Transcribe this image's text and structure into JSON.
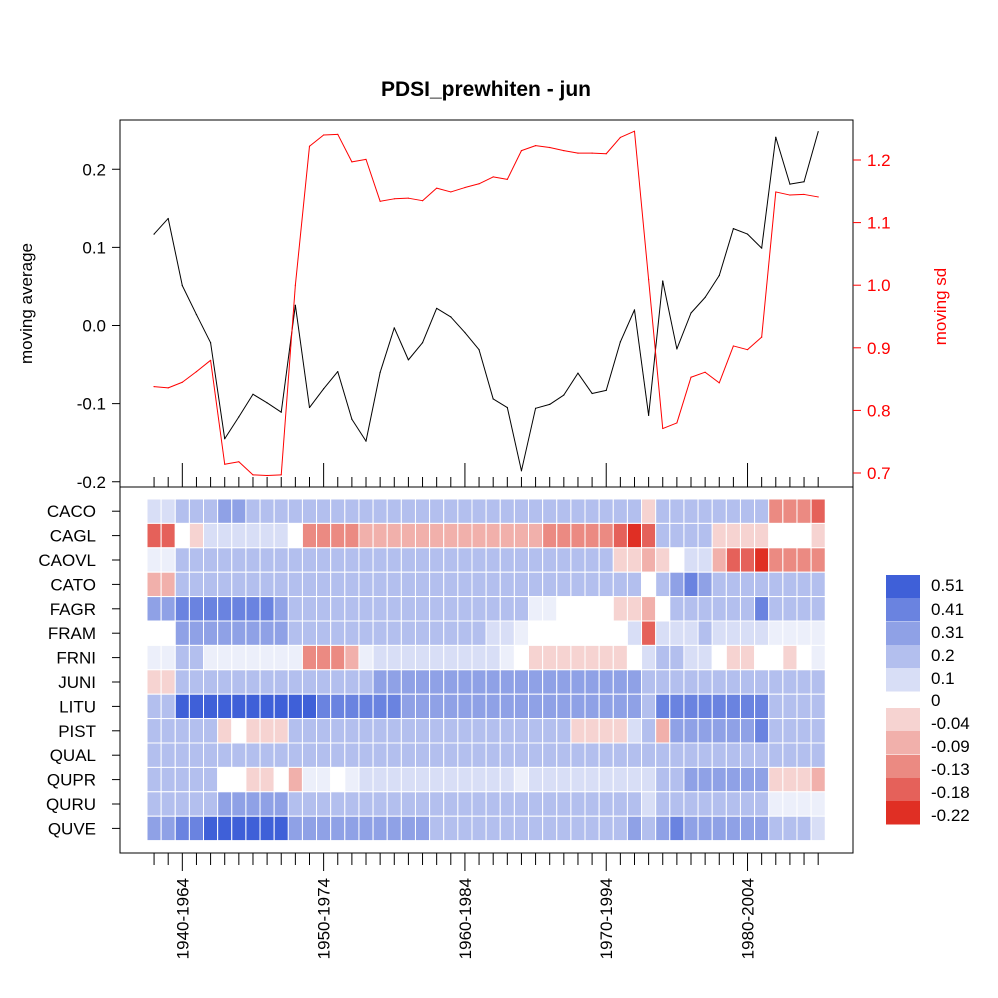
{
  "chart_data": {
    "title": "PDSI_prewhiten - jun",
    "type": "line",
    "top": {
      "left_axis_label": "moving average",
      "right_axis_label": "moving sd",
      "left_ylim": [
        -0.2,
        0.25
      ],
      "right_ylim": [
        0.69,
        1.25
      ],
      "left_ticks": [
        "0.2",
        "0.1",
        "0.0",
        "-0.1",
        "-0.2"
      ],
      "left_tick_values": [
        0.2,
        0.1,
        0.0,
        -0.1,
        -0.2
      ],
      "right_ticks": [
        "1.2",
        "1.1",
        "1.0",
        "0.9",
        "0.8",
        "0.7"
      ],
      "right_tick_values": [
        1.2,
        1.1,
        1.0,
        0.9,
        0.8,
        0.7
      ],
      "series": [
        {
          "color": "#000000",
          "axis": "left",
          "values": [
            0.117,
            0.137,
            0.051,
            0.014,
            -0.022,
            -0.145,
            -0.117,
            -0.088,
            -0.099,
            -0.111,
            0.026,
            -0.105,
            -0.081,
            -0.059,
            -0.12,
            -0.148,
            -0.06,
            -0.003,
            -0.044,
            -0.022,
            0.022,
            0.011,
            -0.009,
            -0.031,
            -0.094,
            -0.105,
            -0.186,
            -0.106,
            -0.101,
            -0.089,
            -0.061,
            -0.087,
            -0.083,
            -0.021,
            0.02,
            -0.115,
            0.057,
            -0.03,
            0.016,
            0.036,
            0.064,
            0.124,
            0.117,
            0.099,
            0.241,
            0.181,
            0.184,
            0.248
          ]
        },
        {
          "color": "#ff0000",
          "axis": "right",
          "values": [
            0.838,
            0.836,
            0.845,
            0.862,
            0.88,
            0.714,
            0.718,
            0.697,
            0.696,
            0.697,
            1.0,
            1.222,
            1.24,
            1.241,
            1.197,
            1.201,
            1.134,
            1.138,
            1.139,
            1.135,
            1.155,
            1.149,
            1.156,
            1.162,
            1.173,
            1.169,
            1.215,
            1.223,
            1.22,
            1.215,
            1.211,
            1.211,
            1.21,
            1.236,
            1.246,
            1.009,
            0.771,
            0.78,
            0.853,
            0.861,
            0.844,
            0.903,
            0.897,
            0.917,
            1.149,
            1.144,
            1.145,
            1.141
          ]
        }
      ]
    },
    "heatmap": {
      "rows": [
        "CACO",
        "CAGL",
        "CAOVL",
        "CATO",
        "FAGR",
        "FRAM",
        "FRNI",
        "JUNI",
        "LITU",
        "PIST",
        "QUAL",
        "QUPR",
        "QURU",
        "QUVE"
      ],
      "x_tick_labels": [
        "1940-1964",
        "1950-1974",
        "1960-1984",
        "1970-1994",
        "1980-2004"
      ],
      "x_tick_label_positions": [
        2,
        12,
        22,
        32,
        42
      ],
      "n_windows": 48,
      "values": [
        [
          0.1,
          0.1,
          0.25,
          0.25,
          0.25,
          0.3,
          0.3,
          0.25,
          0.25,
          0.25,
          0.25,
          0.25,
          0.25,
          0.25,
          0.25,
          0.25,
          0.25,
          0.25,
          0.25,
          0.25,
          0.25,
          0.25,
          0.25,
          0.25,
          0.25,
          0.25,
          0.25,
          0.25,
          0.25,
          0.25,
          0.25,
          0.25,
          0.25,
          0.25,
          0.25,
          -0.04,
          0.15,
          0.25,
          0.15,
          0.25,
          0.15,
          0.15,
          0.15,
          0.15,
          -0.13,
          -0.13,
          -0.13,
          -0.18
        ],
        [
          -0.18,
          -0.18,
          0.0,
          -0.04,
          0.1,
          0.1,
          0.1,
          0.1,
          0.1,
          0.1,
          0.0,
          -0.13,
          -0.13,
          -0.13,
          -0.13,
          -0.09,
          -0.09,
          -0.09,
          -0.09,
          -0.09,
          -0.09,
          -0.09,
          -0.09,
          -0.09,
          -0.09,
          -0.09,
          -0.09,
          -0.09,
          -0.13,
          -0.13,
          -0.13,
          -0.13,
          -0.13,
          -0.18,
          -0.22,
          -0.18,
          0.15,
          0.15,
          0.15,
          0.15,
          -0.04,
          -0.04,
          -0.04,
          -0.04,
          0.0,
          0.0,
          0.0,
          -0.04
        ],
        [
          0.05,
          0.05,
          0.25,
          0.25,
          0.25,
          0.25,
          0.25,
          0.25,
          0.25,
          0.25,
          0.15,
          0.15,
          0.15,
          0.15,
          0.15,
          0.15,
          0.15,
          0.15,
          0.15,
          0.15,
          0.15,
          0.15,
          0.15,
          0.15,
          0.15,
          0.15,
          0.15,
          0.15,
          0.15,
          0.15,
          0.15,
          0.15,
          0.15,
          -0.04,
          -0.04,
          -0.09,
          -0.04,
          0.0,
          0.1,
          0.1,
          -0.09,
          -0.18,
          -0.18,
          -0.22,
          -0.13,
          -0.13,
          -0.13,
          -0.13
        ],
        [
          -0.09,
          -0.09,
          0.15,
          0.15,
          0.15,
          0.15,
          0.15,
          0.15,
          0.15,
          0.15,
          0.2,
          0.2,
          0.2,
          0.25,
          0.25,
          0.25,
          0.25,
          0.25,
          0.25,
          0.25,
          0.25,
          0.25,
          0.25,
          0.25,
          0.25,
          0.25,
          0.25,
          0.25,
          0.25,
          0.25,
          0.25,
          0.25,
          0.25,
          0.25,
          0.25,
          0.0,
          0.25,
          0.3,
          0.4,
          0.35,
          0.2,
          0.2,
          0.2,
          0.2,
          0.2,
          0.2,
          0.2,
          0.15
        ],
        [
          0.3,
          0.3,
          0.45,
          0.45,
          0.45,
          0.45,
          0.4,
          0.4,
          0.4,
          0.35,
          0.25,
          0.25,
          0.25,
          0.25,
          0.25,
          0.2,
          0.2,
          0.2,
          0.15,
          0.15,
          0.15,
          0.15,
          0.15,
          0.15,
          0.15,
          0.15,
          0.15,
          0.05,
          0.05,
          0.0,
          0.0,
          0.0,
          0.0,
          -0.04,
          -0.04,
          -0.09,
          0.0,
          0.2,
          0.2,
          0.2,
          0.2,
          0.25,
          0.25,
          0.4,
          0.25,
          0.25,
          0.25,
          0.25
        ],
        [
          0.0,
          0.0,
          0.3,
          0.3,
          0.3,
          0.3,
          0.3,
          0.3,
          0.3,
          0.3,
          0.2,
          0.2,
          0.2,
          0.2,
          0.2,
          0.2,
          0.2,
          0.2,
          0.15,
          0.15,
          0.15,
          0.15,
          0.15,
          0.15,
          0.1,
          0.1,
          0.05,
          0.0,
          0.0,
          0.0,
          0.0,
          0.0,
          0.0,
          0.0,
          0.1,
          -0.18,
          0.1,
          0.1,
          0.1,
          0.15,
          0.1,
          0.1,
          0.1,
          0.1,
          0.05,
          0.05,
          0.05,
          0.05
        ],
        [
          0.05,
          0.05,
          0.15,
          0.15,
          0.05,
          0.05,
          0.05,
          0.05,
          0.05,
          0.05,
          0.05,
          -0.13,
          -0.13,
          -0.13,
          -0.09,
          0.05,
          0.1,
          0.1,
          0.1,
          0.1,
          0.1,
          0.1,
          0.1,
          0.1,
          0.1,
          0.05,
          0.0,
          -0.04,
          -0.04,
          -0.04,
          -0.04,
          -0.04,
          -0.04,
          -0.04,
          0.0,
          0.1,
          0.25,
          0.15,
          0.1,
          0.1,
          0.0,
          -0.04,
          -0.04,
          0.0,
          0.0,
          -0.04,
          0.0,
          0.05
        ],
        [
          -0.04,
          -0.04,
          0.15,
          0.15,
          0.15,
          0.15,
          0.15,
          0.15,
          0.15,
          0.15,
          0.15,
          0.2,
          0.25,
          0.25,
          0.25,
          0.25,
          0.3,
          0.3,
          0.3,
          0.3,
          0.3,
          0.3,
          0.3,
          0.3,
          0.3,
          0.3,
          0.3,
          0.3,
          0.3,
          0.3,
          0.3,
          0.3,
          0.3,
          0.3,
          0.3,
          0.2,
          0.25,
          0.25,
          0.25,
          0.25,
          0.25,
          0.25,
          0.25,
          0.25,
          0.2,
          0.15,
          0.15,
          0.15
        ],
        [
          0.25,
          0.25,
          0.46,
          0.46,
          0.46,
          0.51,
          0.51,
          0.51,
          0.51,
          0.51,
          0.46,
          0.46,
          0.4,
          0.4,
          0.4,
          0.4,
          0.4,
          0.4,
          0.35,
          0.35,
          0.35,
          0.35,
          0.35,
          0.35,
          0.35,
          0.35,
          0.3,
          0.3,
          0.3,
          0.3,
          0.3,
          0.3,
          0.3,
          0.3,
          0.3,
          0.25,
          0.4,
          0.4,
          0.4,
          0.4,
          0.4,
          0.4,
          0.4,
          0.4,
          0.2,
          0.2,
          0.2,
          0.2
        ],
        [
          0.2,
          0.2,
          0.15,
          0.15,
          0.15,
          -0.04,
          0.0,
          -0.04,
          -0.04,
          -0.04,
          0.15,
          0.15,
          0.15,
          0.2,
          0.2,
          0.2,
          0.2,
          0.2,
          0.2,
          0.2,
          0.2,
          0.2,
          0.2,
          0.2,
          0.2,
          0.2,
          0.2,
          0.15,
          0.15,
          0.15,
          -0.04,
          -0.04,
          -0.04,
          -0.04,
          0.1,
          0.15,
          -0.09,
          0.35,
          0.35,
          0.35,
          0.35,
          0.35,
          0.35,
          0.4,
          0.2,
          0.2,
          0.2,
          0.2
        ],
        [
          0.15,
          0.15,
          0.2,
          0.2,
          0.15,
          0.15,
          0.15,
          0.15,
          0.15,
          0.15,
          0.15,
          0.15,
          0.2,
          0.2,
          0.2,
          0.2,
          0.2,
          0.15,
          0.15,
          0.15,
          0.15,
          0.15,
          0.15,
          0.15,
          0.15,
          0.15,
          0.15,
          0.15,
          0.15,
          0.15,
          0.15,
          0.15,
          0.15,
          0.15,
          0.15,
          0.15,
          0.2,
          0.25,
          0.25,
          0.25,
          0.25,
          0.25,
          0.25,
          0.25,
          0.15,
          0.15,
          0.15,
          0.15
        ],
        [
          0.15,
          0.15,
          0.15,
          0.15,
          0.15,
          0.0,
          0.0,
          -0.04,
          -0.04,
          0.0,
          -0.09,
          0.05,
          0.05,
          0.0,
          0.05,
          0.1,
          0.1,
          0.1,
          0.1,
          0.1,
          0.1,
          0.1,
          0.1,
          0.1,
          0.1,
          0.1,
          0.05,
          0.1,
          0.1,
          0.1,
          0.1,
          0.1,
          0.1,
          0.1,
          0.1,
          0.1,
          0.2,
          0.25,
          0.3,
          0.3,
          0.3,
          0.3,
          0.3,
          0.3,
          -0.04,
          -0.04,
          -0.04,
          -0.09
        ],
        [
          0.2,
          0.2,
          0.25,
          0.25,
          0.25,
          0.35,
          0.35,
          0.35,
          0.35,
          0.3,
          0.2,
          0.2,
          0.2,
          0.2,
          0.2,
          0.2,
          0.2,
          0.2,
          0.2,
          0.2,
          0.2,
          0.2,
          0.2,
          0.2,
          0.2,
          0.2,
          0.15,
          0.15,
          0.15,
          0.15,
          0.15,
          0.15,
          0.15,
          0.15,
          0.15,
          0.1,
          0.15,
          0.15,
          0.15,
          0.15,
          0.15,
          0.15,
          0.15,
          0.15,
          0.05,
          0.05,
          0.05,
          0.05
        ],
        [
          0.35,
          0.35,
          0.45,
          0.45,
          0.46,
          0.51,
          0.51,
          0.51,
          0.46,
          0.46,
          0.3,
          0.3,
          0.3,
          0.3,
          0.3,
          0.3,
          0.3,
          0.3,
          0.3,
          0.3,
          0.25,
          0.25,
          0.25,
          0.25,
          0.25,
          0.25,
          0.25,
          0.25,
          0.25,
          0.25,
          0.25,
          0.25,
          0.25,
          0.25,
          0.3,
          0.25,
          0.3,
          0.4,
          0.35,
          0.35,
          0.3,
          0.3,
          0.3,
          0.3,
          0.15,
          0.15,
          0.15,
          0.1
        ]
      ]
    },
    "legend": {
      "labels": [
        "0.51",
        "0.41",
        "0.31",
        "0.2",
        "0.1",
        "0",
        "-0.04",
        "-0.09",
        "-0.13",
        "-0.18",
        "-0.22"
      ],
      "colors": [
        "#3f60d8",
        "#6a83e0",
        "#8fa1e6",
        "#b3bfee",
        "#d8def6",
        "#f6d3d1",
        "#f1b0ab",
        "#eb8a82",
        "#e5615a",
        "#e02f24"
      ]
    }
  }
}
